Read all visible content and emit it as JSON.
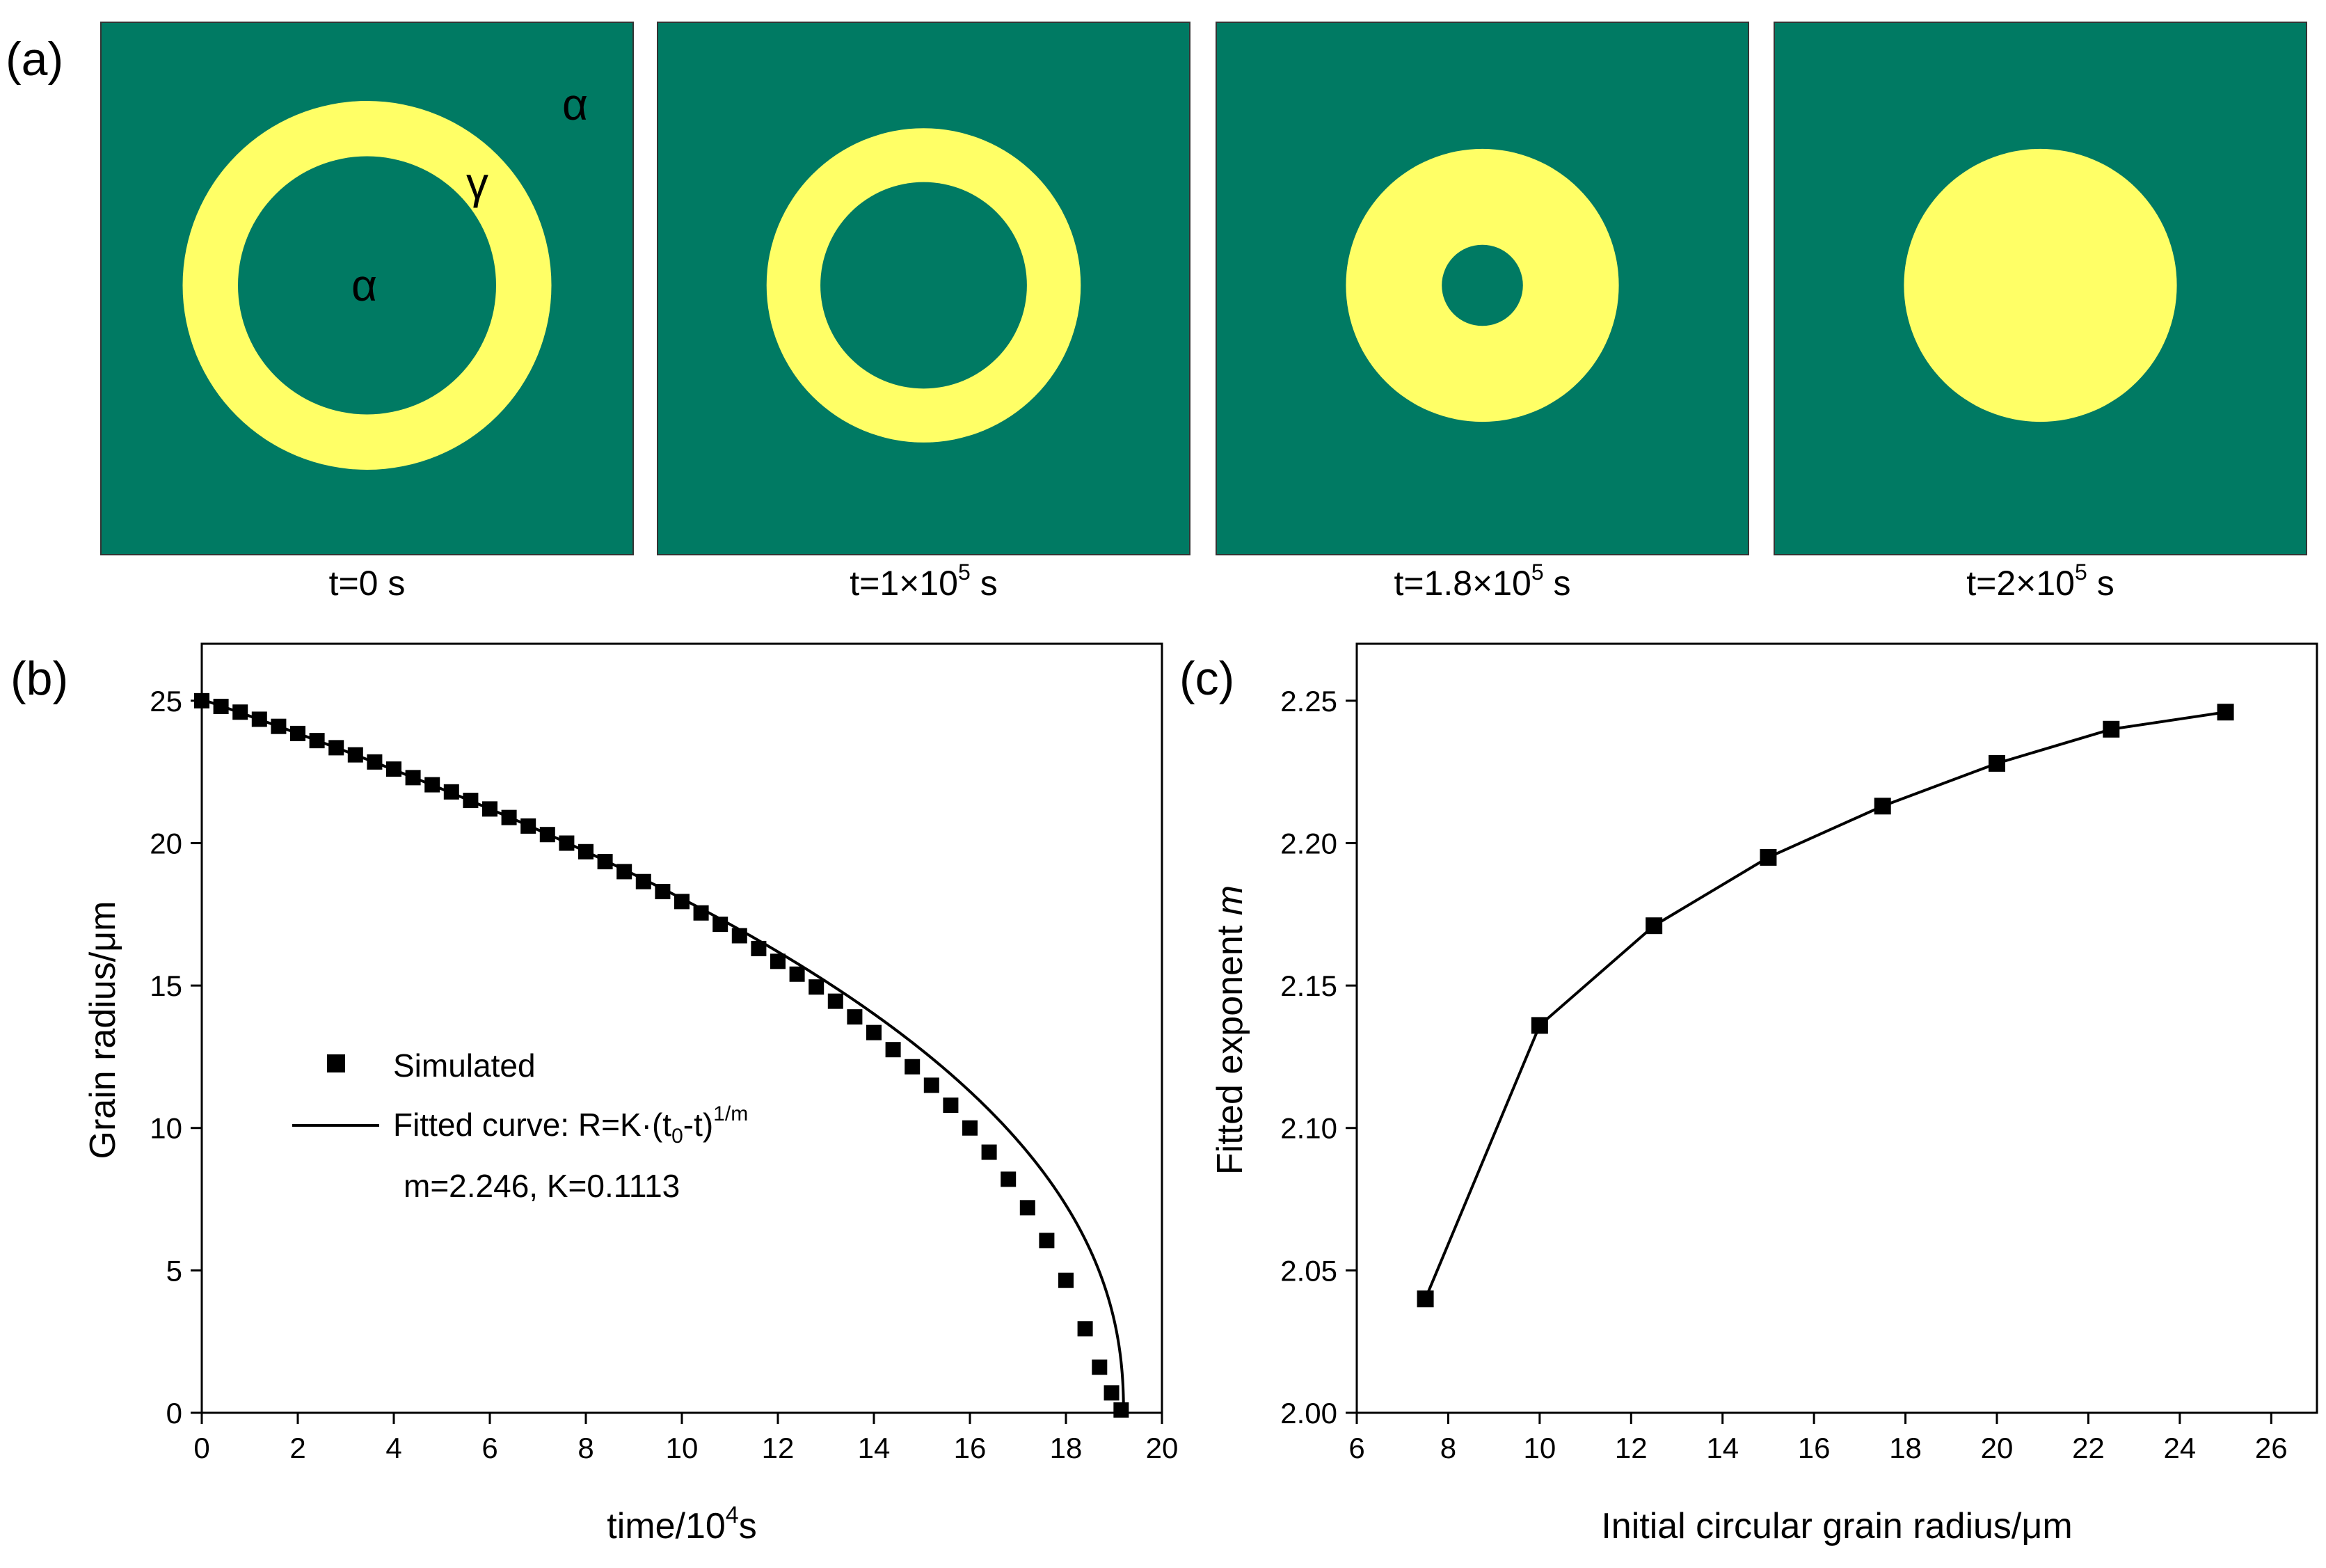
{
  "colors": {
    "matrix": "#007a63",
    "grain": "#ffff66",
    "ink": "#000000"
  },
  "panel_a": {
    "label": "(a)",
    "phase_alpha": "α",
    "phase_gamma": "γ",
    "snapshots": [
      {
        "time_prefix": "t=",
        "time_mantissa": "0",
        "time_exponent": "",
        "time_unit": " s",
        "outer_radius_um": 25,
        "inner_radius_um": 17.5
      },
      {
        "time_prefix": "t=",
        "time_mantissa": "1×10",
        "time_exponent": "5",
        "time_unit": " s",
        "outer_radius_um": 21.3,
        "inner_radius_um": 14
      },
      {
        "time_prefix": "t=",
        "time_mantissa": "1.8×10",
        "time_exponent": "5",
        "time_unit": " s",
        "outer_radius_um": 18.5,
        "inner_radius_um": 5.5
      },
      {
        "time_prefix": "t=",
        "time_mantissa": "2×10",
        "time_exponent": "5",
        "time_unit": " s",
        "outer_radius_um": 18.5,
        "inner_radius_um": 0
      }
    ]
  },
  "panel_b": {
    "label": "(b)",
    "legend": {
      "marker_label": "Simulated",
      "line_label_prefix": "Fitted curve: R=K·(t",
      "line_label_sub": "0",
      "line_label_mid": "-t)",
      "line_label_sup": "1/m",
      "params": "m=2.246, K=0.1113"
    }
  },
  "panel_c": {
    "label": "(c)"
  },
  "chart_data": [
    {
      "type": "scatter",
      "title": "",
      "xlabel": "time/10",
      "xlabel_sup": "4",
      "xlabel_suffix": "s",
      "ylabel": "Grain radius/μm",
      "xlim": [
        0,
        20
      ],
      "ylim": [
        0,
        27
      ],
      "xticks": [
        "0",
        "2",
        "4",
        "6",
        "8",
        "10",
        "12",
        "14",
        "16",
        "18",
        "20"
      ],
      "yticks": [
        "0",
        "5",
        "10",
        "15",
        "20",
        "25"
      ],
      "series": [
        {
          "name": "Simulated",
          "x": [
            0,
            0.4,
            0.8,
            1.2,
            1.6,
            2.0,
            2.4,
            2.8,
            3.2,
            3.6,
            4.0,
            4.4,
            4.8,
            5.2,
            5.6,
            6.0,
            6.4,
            6.8,
            7.2,
            7.6,
            8.0,
            8.4,
            8.8,
            9.2,
            9.6,
            10.0,
            10.4,
            10.8,
            11.2,
            11.6,
            12.0,
            12.4,
            12.8,
            13.2,
            13.6,
            14.0,
            14.4,
            14.8,
            15.2,
            15.6,
            16.0,
            16.4,
            16.8,
            17.2,
            17.6,
            18.0,
            18.4,
            18.7,
            18.95,
            19.15
          ],
          "y": [
            25.0,
            24.8,
            24.6,
            24.35,
            24.1,
            23.85,
            23.6,
            23.35,
            23.1,
            22.85,
            22.6,
            22.3,
            22.05,
            21.8,
            21.5,
            21.2,
            20.9,
            20.6,
            20.3,
            20.0,
            19.7,
            19.35,
            19.0,
            18.65,
            18.3,
            17.95,
            17.55,
            17.15,
            16.75,
            16.3,
            15.85,
            15.4,
            14.95,
            14.45,
            13.9,
            13.35,
            12.75,
            12.15,
            11.5,
            10.8,
            10.0,
            9.15,
            8.2,
            7.2,
            6.05,
            4.65,
            2.95,
            1.6,
            0.7,
            0.1
          ]
        },
        {
          "name": "Fitted curve",
          "model": "R = K*(t0 - t)^(1/m), t in seconds",
          "K": 0.1113,
          "m": 2.246,
          "t0_1e4s": 19.2
        }
      ]
    },
    {
      "type": "line",
      "title": "",
      "xlabel": "Initial circular grain radius/μm",
      "ylabel": "Fitted exponent ",
      "ylabel_italic": "m",
      "xlim": [
        6,
        27
      ],
      "ylim": [
        2.0,
        2.27
      ],
      "xticks": [
        "6",
        "8",
        "10",
        "12",
        "14",
        "16",
        "18",
        "20",
        "22",
        "24",
        "26"
      ],
      "yticks": [
        "2.00",
        "2.05",
        "2.10",
        "2.15",
        "2.20",
        "2.25"
      ],
      "series": [
        {
          "name": "Fitted exponent m",
          "x": [
            7.5,
            10,
            12.5,
            15,
            17.5,
            20,
            22.5,
            25
          ],
          "y": [
            2.04,
            2.136,
            2.171,
            2.195,
            2.213,
            2.228,
            2.24,
            2.246
          ]
        }
      ]
    }
  ]
}
